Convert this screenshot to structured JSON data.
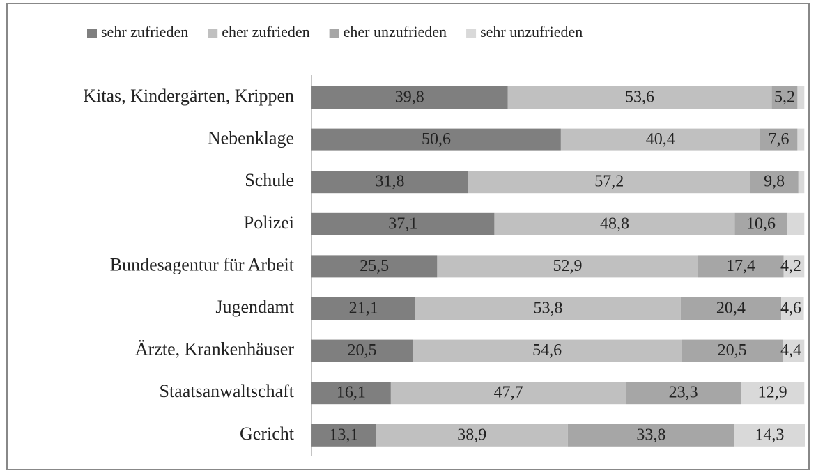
{
  "chart_data": {
    "type": "stacked_bar_horizontal",
    "categories": [
      "Kitas, Kindergärten, Krippen",
      "Nebenklage",
      "Schule",
      "Polizei",
      "Bundesagentur für Arbeit",
      "Jugendamt",
      "Ärzte, Krankenhäuser",
      "Staatsanwaltschaft",
      "Gericht"
    ],
    "series": [
      {
        "name": "sehr zufrieden",
        "color": "#7f7f7f",
        "values": [
          39.8,
          50.6,
          31.8,
          37.1,
          25.5,
          21.1,
          20.5,
          16.1,
          13.1
        ],
        "value_labels": [
          "39,8",
          "50,6",
          "31,8",
          "37,1",
          "25,5",
          "21,1",
          "20,5",
          "16,1",
          "13,1"
        ]
      },
      {
        "name": "eher zufrieden",
        "color": "#c0c0c0",
        "values": [
          53.6,
          40.4,
          57.2,
          48.8,
          52.9,
          53.8,
          54.6,
          47.7,
          38.9
        ],
        "value_labels": [
          "53,6",
          "40,4",
          "57,2",
          "48,8",
          "52,9",
          "53,8",
          "54,6",
          "47,7",
          "38,9"
        ]
      },
      {
        "name": "eher unzufrieden",
        "color": "#a6a6a6",
        "values": [
          5.2,
          7.6,
          9.8,
          10.6,
          17.4,
          20.4,
          20.5,
          23.3,
          33.8
        ],
        "value_labels": [
          "5,2",
          "7,6",
          "9,8",
          "10,6",
          "17,4",
          "20,4",
          "20,5",
          "23,3",
          "33,8"
        ]
      },
      {
        "name": "sehr unzufrieden",
        "color": "#d9d9d9",
        "values": [
          1.4,
          1.4,
          1.2,
          3.5,
          4.2,
          4.6,
          4.4,
          12.9,
          14.3
        ],
        "value_labels": [
          null,
          null,
          null,
          null,
          "4,2",
          "4,6",
          "4,4",
          "12,9",
          "14,3"
        ]
      }
    ]
  }
}
